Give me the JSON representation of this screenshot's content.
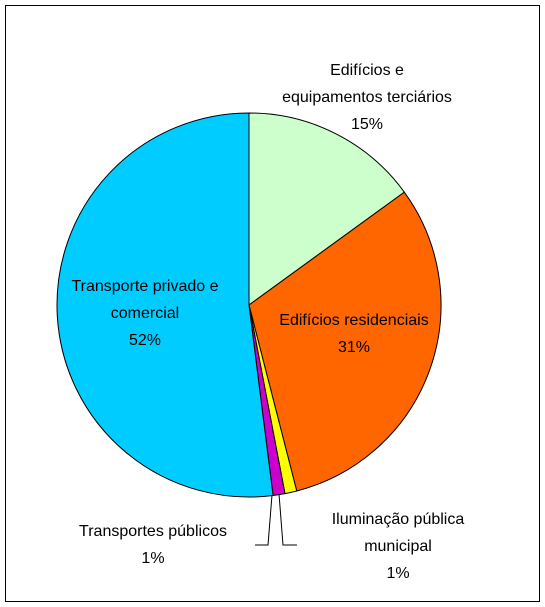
{
  "chart_data": {
    "type": "pie",
    "categories": [
      "Edifícios e\nequipamentos terciários",
      "Edifícios residenciais",
      "Iluminação pública\nmunicipal",
      "Transportes públicos",
      "Transporte privado e\ncomercial"
    ],
    "values": [
      15,
      31,
      1,
      1,
      52
    ],
    "value_labels": [
      "15%",
      "31%",
      "1%",
      "1%",
      "52%"
    ],
    "colors": [
      "#ccffcc",
      "#ff6600",
      "#ffff00",
      "#cc00cc",
      "#00ccff"
    ]
  }
}
